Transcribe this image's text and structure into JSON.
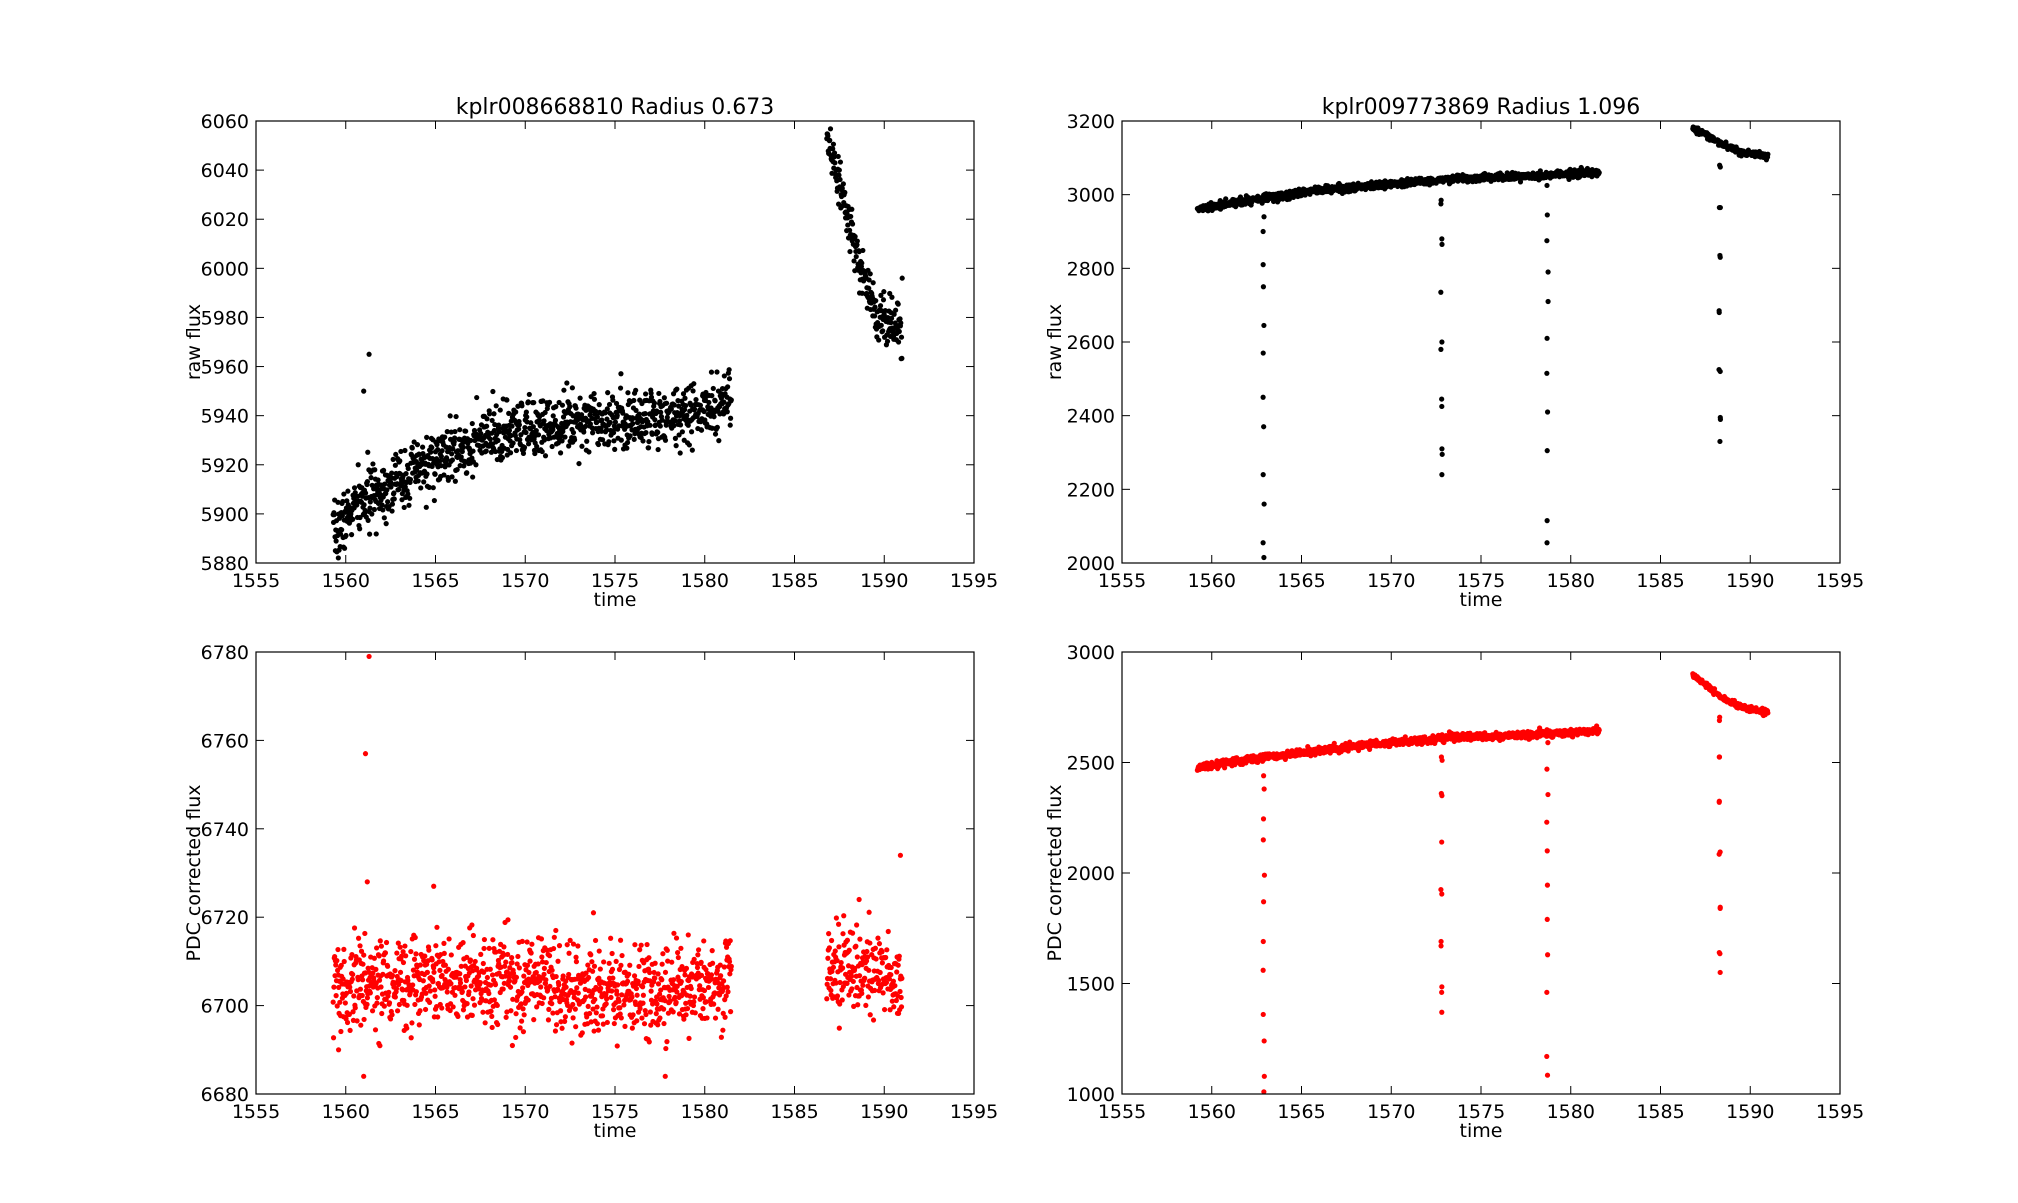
{
  "figure": {
    "background": "#ffffff"
  },
  "chart_data": [
    {
      "id": "tl",
      "type": "scatter",
      "title": "kplr008668810  Radius 0.673",
      "xlabel": "time",
      "ylabel": "raw flux",
      "xlim": [
        1555,
        1595
      ],
      "ylim": [
        5880,
        6060
      ],
      "xticks": [
        1555,
        1560,
        1565,
        1570,
        1575,
        1580,
        1585,
        1590,
        1595
      ],
      "yticks": [
        5880,
        5900,
        5920,
        5940,
        5960,
        5980,
        6000,
        6020,
        6040,
        6060
      ],
      "color": "#000000",
      "grid": false,
      "trend": [
        {
          "x_range": [
            1559.3,
            1581.5
          ],
          "knots": [
            [
              1559.3,
              5891
            ],
            [
              1560.5,
              5903
            ],
            [
              1562,
              5910
            ],
            [
              1564,
              5918
            ],
            [
              1566,
              5925
            ],
            [
              1568,
              5931
            ],
            [
              1570,
              5934
            ],
            [
              1572,
              5938
            ],
            [
              1574,
              5939
            ],
            [
              1576,
              5938
            ],
            [
              1578,
              5940
            ],
            [
              1580,
              5941
            ],
            [
              1581.5,
              5947
            ]
          ],
          "noise": 6
        },
        {
          "x_range": [
            1586.8,
            1591.0
          ],
          "knots": [
            [
              1586.8,
              6050
            ],
            [
              1587.5,
              6035
            ],
            [
              1588.2,
              6012
            ],
            [
              1588.8,
              5997
            ],
            [
              1589.5,
              5983
            ],
            [
              1590.2,
              5978
            ],
            [
              1591.0,
              5974
            ]
          ],
          "noise": 5
        }
      ],
      "outliers": [
        [
          1561.0,
          5950
        ],
        [
          1561.3,
          5965
        ],
        [
          1591.0,
          5996
        ]
      ]
    },
    {
      "id": "tr",
      "type": "scatter",
      "title": "kplr009773869  Radius 1.096",
      "xlabel": "time",
      "ylabel": "raw flux",
      "xlim": [
        1555,
        1595
      ],
      "ylim": [
        2000,
        3200
      ],
      "xticks": [
        1555,
        1560,
        1565,
        1570,
        1575,
        1580,
        1585,
        1590,
        1595
      ],
      "yticks": [
        2000,
        2200,
        2400,
        2600,
        2800,
        3000,
        3200
      ],
      "color": "#000000",
      "grid": false,
      "trend": [
        {
          "x_range": [
            1559.2,
            1581.6
          ],
          "knots": [
            [
              1559.2,
              2960
            ],
            [
              1562,
              2985
            ],
            [
              1566,
              3012
            ],
            [
              1570,
              3030
            ],
            [
              1574,
              3045
            ],
            [
              1578,
              3050
            ],
            [
              1581.6,
              3062
            ]
          ],
          "noise": 5
        },
        {
          "x_range": [
            1586.8,
            1591.0
          ],
          "knots": [
            [
              1586.8,
              3180
            ],
            [
              1587.6,
              3160
            ],
            [
              1588.5,
              3135
            ],
            [
              1589.5,
              3115
            ],
            [
              1591.0,
              3105
            ]
          ],
          "noise": 4
        }
      ],
      "transits": [
        {
          "x": 1562.9,
          "y": [
            2940,
            2900,
            2810,
            2750,
            2645,
            2570,
            2450,
            2370,
            2240,
            2160,
            2055,
            2015
          ]
        },
        {
          "x": 1572.8,
          "y": [
            2985,
            2975,
            2880,
            2865,
            2735,
            2600,
            2580,
            2445,
            2425,
            2310,
            2295,
            2240
          ]
        },
        {
          "x": 1578.7,
          "y": [
            3025,
            2945,
            2875,
            2790,
            2710,
            2610,
            2515,
            2410,
            2305,
            2115,
            2055
          ]
        },
        {
          "x": 1588.3,
          "y": [
            3080,
            3075,
            2965,
            2965,
            2835,
            2830,
            2685,
            2680,
            2525,
            2520,
            2395,
            2390,
            2330
          ]
        }
      ]
    },
    {
      "id": "bl",
      "type": "scatter",
      "title": "",
      "xlabel": "time",
      "ylabel": "PDC corrected flux",
      "xlim": [
        1555,
        1595
      ],
      "ylim": [
        6680,
        6780
      ],
      "xticks": [
        1555,
        1560,
        1565,
        1570,
        1575,
        1580,
        1585,
        1590,
        1595
      ],
      "yticks": [
        6680,
        6700,
        6720,
        6740,
        6760,
        6780
      ],
      "color": "#ff0000",
      "grid": false,
      "trend": [
        {
          "x_range": [
            1559.3,
            1581.5
          ],
          "knots": [
            [
              1559.3,
              6704
            ],
            [
              1565,
              6706
            ],
            [
              1570,
              6705
            ],
            [
              1575,
              6704
            ],
            [
              1578,
              6702
            ],
            [
              1581.5,
              6706
            ]
          ],
          "noise": 5
        },
        {
          "x_range": [
            1586.8,
            1591.0
          ],
          "knots": [
            [
              1586.8,
              6707
            ],
            [
              1588.5,
              6709
            ],
            [
              1591.0,
              6706
            ]
          ],
          "noise": 5
        }
      ],
      "outliers": [
        [
          1561.1,
          6757
        ],
        [
          1561.3,
          6779
        ],
        [
          1561.2,
          6728
        ],
        [
          1564.9,
          6727
        ],
        [
          1561.0,
          6684
        ],
        [
          1577.8,
          6684
        ],
        [
          1588.6,
          6724
        ],
        [
          1590.9,
          6734
        ],
        [
          1573.8,
          6721
        ],
        [
          1559.6,
          6690
        ]
      ]
    },
    {
      "id": "br",
      "type": "scatter",
      "title": "",
      "xlabel": "time",
      "ylabel": "PDC corrected flux",
      "xlim": [
        1555,
        1595
      ],
      "ylim": [
        1000,
        3000
      ],
      "xticks": [
        1555,
        1560,
        1565,
        1570,
        1575,
        1580,
        1585,
        1590,
        1595
      ],
      "yticks": [
        1000,
        1500,
        2000,
        2500,
        3000
      ],
      "color": "#ff0000",
      "grid": false,
      "trend": [
        {
          "x_range": [
            1559.2,
            1581.6
          ],
          "knots": [
            [
              1559.2,
              2475
            ],
            [
              1562,
              2515
            ],
            [
              1566,
              2555
            ],
            [
              1570,
              2590
            ],
            [
              1574,
              2615
            ],
            [
              1578,
              2625
            ],
            [
              1581.6,
              2645
            ]
          ],
          "noise": 8
        },
        {
          "x_range": [
            1586.8,
            1591.0
          ],
          "knots": [
            [
              1586.8,
              2895
            ],
            [
              1587.6,
              2850
            ],
            [
              1588.5,
              2790
            ],
            [
              1589.5,
              2750
            ],
            [
              1591.0,
              2730
            ]
          ],
          "noise": 6
        }
      ],
      "transits": [
        {
          "x": 1562.9,
          "y": [
            2440,
            2380,
            2245,
            2150,
            1990,
            1870,
            1690,
            1560,
            1360,
            1240,
            1080,
            1010
          ]
        },
        {
          "x": 1572.8,
          "y": [
            2525,
            2510,
            2360,
            2350,
            2140,
            1925,
            1905,
            1690,
            1670,
            1485,
            1460,
            1370
          ]
        },
        {
          "x": 1578.7,
          "y": [
            2590,
            2470,
            2355,
            2230,
            2100,
            1945,
            1790,
            1630,
            1460,
            1170,
            1085
          ]
        },
        {
          "x": 1588.3,
          "y": [
            2705,
            2690,
            2525,
            2525,
            2325,
            2320,
            2095,
            2085,
            1845,
            1840,
            1640,
            1635,
            1550
          ]
        }
      ]
    }
  ]
}
